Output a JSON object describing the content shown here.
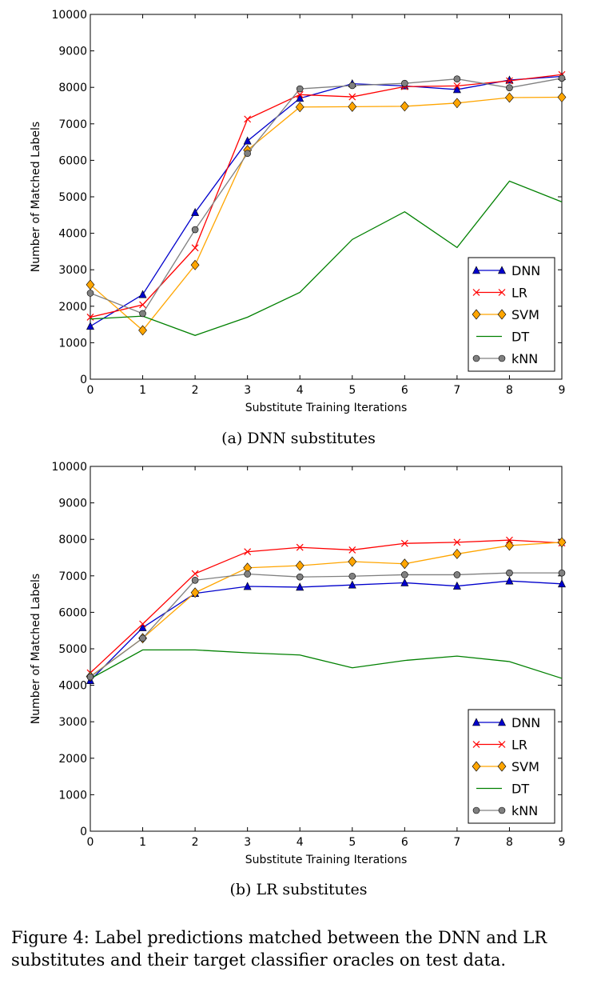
{
  "chart_data": [
    {
      "type": "line",
      "title": "",
      "xlabel": "Substitute Training Iterations",
      "ylabel": "Number of Matched Labels",
      "xlim": [
        0,
        9
      ],
      "ylim": [
        0,
        10000
      ],
      "x": [
        0,
        1,
        2,
        3,
        4,
        5,
        6,
        7,
        8,
        9
      ],
      "xticks": [
        "0",
        "1",
        "2",
        "3",
        "4",
        "5",
        "6",
        "7",
        "8",
        "9"
      ],
      "yticks": [
        "0",
        "1000",
        "2000",
        "3000",
        "4000",
        "5000",
        "6000",
        "7000",
        "8000",
        "9000",
        "10000"
      ],
      "legend_position": "lower-right",
      "series": [
        {
          "name": "DNN",
          "color": "#0000cc",
          "marker": "triangle",
          "values": [
            1450,
            2320,
            4570,
            6530,
            7700,
            8100,
            8040,
            7940,
            8200,
            8300
          ]
        },
        {
          "name": "LR",
          "color": "#ff0000",
          "marker": "x",
          "values": [
            1700,
            2040,
            3600,
            7130,
            7800,
            7740,
            8020,
            8040,
            8180,
            8350
          ]
        },
        {
          "name": "SVM",
          "color": "#ffa500",
          "marker": "diamond",
          "values": [
            2590,
            1340,
            3130,
            6280,
            7460,
            7470,
            7480,
            7570,
            7720,
            7730
          ]
        },
        {
          "name": "DT",
          "color": "#008000",
          "marker": "none",
          "values": [
            1650,
            1730,
            1200,
            1700,
            2380,
            3830,
            4590,
            3610,
            5430,
            4860
          ]
        },
        {
          "name": "kNN",
          "color": "#808080",
          "marker": "circle",
          "values": [
            2360,
            1800,
            4100,
            6190,
            7960,
            8050,
            8110,
            8230,
            7990,
            8250
          ]
        }
      ]
    },
    {
      "type": "line",
      "title": "",
      "xlabel": "Substitute Training Iterations",
      "ylabel": "Number of Matched Labels",
      "xlim": [
        0,
        9
      ],
      "ylim": [
        0,
        10000
      ],
      "x": [
        0,
        1,
        2,
        3,
        4,
        5,
        6,
        7,
        8,
        9
      ],
      "xticks": [
        "0",
        "1",
        "2",
        "3",
        "4",
        "5",
        "6",
        "7",
        "8",
        "9"
      ],
      "yticks": [
        "0",
        "1000",
        "2000",
        "3000",
        "4000",
        "5000",
        "6000",
        "7000",
        "8000",
        "9000",
        "10000"
      ],
      "legend_position": "lower-right",
      "series": [
        {
          "name": "DNN",
          "color": "#0000cc",
          "marker": "triangle",
          "values": [
            4130,
            5580,
            6520,
            6710,
            6690,
            6750,
            6810,
            6720,
            6860,
            6780
          ]
        },
        {
          "name": "LR",
          "color": "#ff0000",
          "marker": "x",
          "values": [
            4340,
            5680,
            7060,
            7660,
            7780,
            7710,
            7890,
            7920,
            7980,
            7900
          ]
        },
        {
          "name": "SVM",
          "color": "#ffa500",
          "marker": "diamond",
          "values": [
            4240,
            5290,
            6540,
            7220,
            7280,
            7390,
            7330,
            7600,
            7830,
            7920
          ]
        },
        {
          "name": "DT",
          "color": "#008000",
          "marker": "none",
          "values": [
            4180,
            4970,
            4970,
            4890,
            4830,
            4480,
            4680,
            4800,
            4650,
            4190
          ]
        },
        {
          "name": "kNN",
          "color": "#808080",
          "marker": "circle",
          "values": [
            4230,
            5290,
            6880,
            7050,
            6970,
            6990,
            7030,
            7030,
            7080,
            7080
          ]
        }
      ]
    }
  ],
  "subcaptions": [
    "(a) DNN substitutes",
    "(b) LR substitutes"
  ],
  "caption": "Figure 4: Label predictions matched between the DNN and LR substitutes and their target classifier oracles on test data."
}
